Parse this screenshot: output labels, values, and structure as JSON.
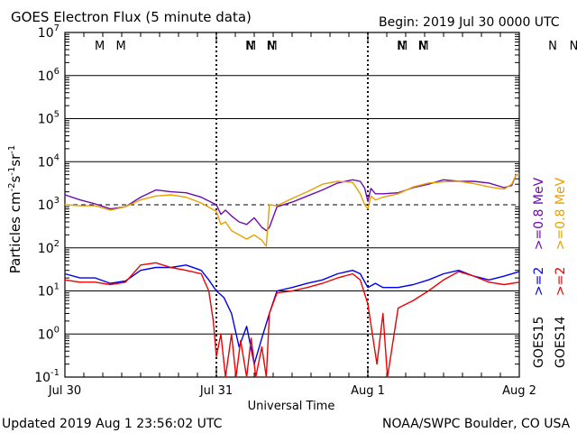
{
  "chart_data": {
    "type": "line",
    "title": "GOES Electron Flux (5 minute data)",
    "begin_label": "Begin: 2019 Jul 30 0000 UTC",
    "xlabel": "Universal Time",
    "ylabel_main": "Particles cm",
    "ylabel_sup1": "-2",
    "ylabel_mid1": "s",
    "ylabel_sup2": "-1",
    "ylabel_mid2": "sr",
    "ylabel_sup3": "-1",
    "x_range": [
      "2019-07-30",
      "2019-08-02"
    ],
    "x_ticks": [
      "Jul 30",
      "Jul 31",
      "Aug 1",
      "Aug 2"
    ],
    "y_scale": "log",
    "ylim": [
      0.1,
      10000000
    ],
    "y_tick_base": "10",
    "y_tick_exponents": [
      "7",
      "6",
      "5",
      "4",
      "3",
      "2",
      "1",
      "0",
      "-1"
    ],
    "threshold_line": 1000,
    "markers": [
      {
        "label": "M",
        "day": 0.85,
        "color": "#cc0000"
      },
      {
        "label": "M",
        "day": 0.99,
        "color": "#0000cc"
      },
      {
        "label": "N",
        "day": 1.84,
        "color": "#cc0000"
      },
      {
        "label": "N",
        "day": 1.98,
        "color": "#0000cc"
      },
      {
        "label": "M",
        "day": 1.85,
        "color": "#cc0000"
      },
      {
        "label": "M",
        "day": 1.99,
        "color": "#0000cc"
      },
      {
        "label": "N",
        "day": 2.84,
        "color": "#cc0000"
      },
      {
        "label": "N",
        "day": 2.98,
        "color": "#0000cc"
      },
      {
        "label": "M",
        "day": 2.85,
        "color": "#cc0000"
      },
      {
        "label": "M",
        "day": 2.99,
        "color": "#0000cc"
      },
      {
        "label": "N",
        "day": 3.84,
        "color": "#cc0000"
      },
      {
        "label": "N",
        "day": 3.98,
        "color": "#0000cc"
      }
    ],
    "series": [
      {
        "name": ">=0.8 MeV",
        "satellite": "GOES15",
        "color": "#6a0dad",
        "x": [
          0,
          0.1,
          0.2,
          0.3,
          0.4,
          0.5,
          0.6,
          0.7,
          0.8,
          0.9,
          1.0,
          1.03,
          1.06,
          1.1,
          1.15,
          1.2,
          1.25,
          1.3,
          1.33,
          1.35,
          1.4,
          1.5,
          1.6,
          1.7,
          1.8,
          1.9,
          1.95,
          1.98,
          2.0,
          2.02,
          2.05,
          2.1,
          2.2,
          2.3,
          2.4,
          2.5,
          2.6,
          2.7,
          2.8,
          2.9,
          2.95,
          2.98,
          3.0
        ],
        "y": [
          1700,
          1300,
          1050,
          800,
          900,
          1500,
          2200,
          2000,
          1900,
          1500,
          1000,
          600,
          750,
          550,
          400,
          350,
          500,
          300,
          250,
          300,
          900,
          1150,
          1600,
          2200,
          3200,
          3800,
          3500,
          2400,
          1200,
          2400,
          1800,
          1800,
          1900,
          2500,
          3000,
          3800,
          3500,
          3500,
          3200,
          2500,
          2800,
          5000,
          5000
        ]
      },
      {
        "name": ">=0.8 MeV",
        "satellite": "GOES14",
        "color": "#e8a000",
        "x": [
          0,
          0.1,
          0.2,
          0.3,
          0.4,
          0.5,
          0.6,
          0.7,
          0.8,
          0.9,
          1.0,
          1.03,
          1.06,
          1.1,
          1.15,
          1.2,
          1.25,
          1.3,
          1.32,
          1.33,
          1.35,
          1.4,
          1.5,
          1.6,
          1.7,
          1.8,
          1.9,
          1.95,
          1.98,
          2.0,
          2.02,
          2.05,
          2.1,
          2.2,
          2.3,
          2.4,
          2.5,
          2.6,
          2.7,
          2.8,
          2.9,
          2.95,
          2.98,
          3.0
        ],
        "y": [
          1000,
          950,
          950,
          750,
          900,
          1300,
          1600,
          1700,
          1500,
          1100,
          700,
          350,
          400,
          250,
          200,
          160,
          200,
          150,
          120,
          110,
          1000,
          950,
          1400,
          2000,
          3000,
          3500,
          3300,
          1800,
          1000,
          800,
          1600,
          1300,
          1500,
          1800,
          2600,
          3200,
          3400,
          3500,
          3100,
          2600,
          2300,
          3000,
          5000,
          5000
        ]
      },
      {
        "name": ">=2 MeV",
        "satellite": "GOES15",
        "color": "#0000ee",
        "x": [
          0,
          0.1,
          0.2,
          0.3,
          0.4,
          0.5,
          0.6,
          0.7,
          0.8,
          0.9,
          0.95,
          1.0,
          1.05,
          1.1,
          1.15,
          1.2,
          1.25,
          1.3,
          1.35,
          1.4,
          1.5,
          1.6,
          1.7,
          1.8,
          1.9,
          1.95,
          2.0,
          2.05,
          2.1,
          2.2,
          2.3,
          2.4,
          2.5,
          2.6,
          2.7,
          2.8,
          2.9,
          3.0
        ],
        "y": [
          25,
          20,
          20,
          15,
          17,
          30,
          35,
          35,
          40,
          30,
          18,
          10,
          7,
          3,
          0.5,
          1.5,
          0.2,
          0.8,
          3,
          10,
          12,
          15,
          18,
          25,
          30,
          25,
          12,
          15,
          12,
          12,
          14,
          18,
          25,
          30,
          22,
          18,
          22,
          28
        ]
      },
      {
        "name": ">=2 MeV",
        "satellite": "GOES14",
        "color": "#ee0000",
        "x": [
          0,
          0.1,
          0.2,
          0.3,
          0.4,
          0.5,
          0.6,
          0.7,
          0.8,
          0.9,
          0.95,
          0.98,
          1.0,
          1.03,
          1.06,
          1.1,
          1.13,
          1.16,
          1.2,
          1.23,
          1.26,
          1.3,
          1.33,
          1.35,
          1.4,
          1.5,
          1.6,
          1.7,
          1.8,
          1.9,
          1.95,
          2.0,
          2.03,
          2.06,
          2.1,
          2.13,
          2.2,
          2.3,
          2.4,
          2.5,
          2.6,
          2.7,
          2.8,
          2.9,
          3.0
        ],
        "y": [
          18,
          16,
          16,
          14,
          16,
          40,
          45,
          35,
          30,
          25,
          10,
          2,
          0.3,
          1,
          0.1,
          1,
          0.1,
          0.7,
          0.1,
          0.8,
          0.1,
          0.5,
          0.1,
          3,
          9,
          10,
          12,
          15,
          20,
          25,
          18,
          5,
          1,
          0.2,
          3,
          0.1,
          4,
          6,
          10,
          18,
          28,
          22,
          16,
          14,
          16
        ]
      }
    ],
    "legend": {
      "goes15_label": "GOES15",
      "goes14_label": "GOES14",
      "goes15_high": ">=0.8 MeV",
      "goes15_low": ">=2",
      "goes14_high": ">=0.8 MeV",
      "goes14_low": ">=2",
      "goes15_high_color": "#6a0dad",
      "goes15_low_color": "#0000ee",
      "goes14_high_color": "#e8a000",
      "goes14_low_color": "#ee0000"
    }
  },
  "footer": {
    "updated": "Updated 2019 Aug  1 23:56:02 UTC",
    "source": "NOAA/SWPC Boulder, CO USA"
  }
}
